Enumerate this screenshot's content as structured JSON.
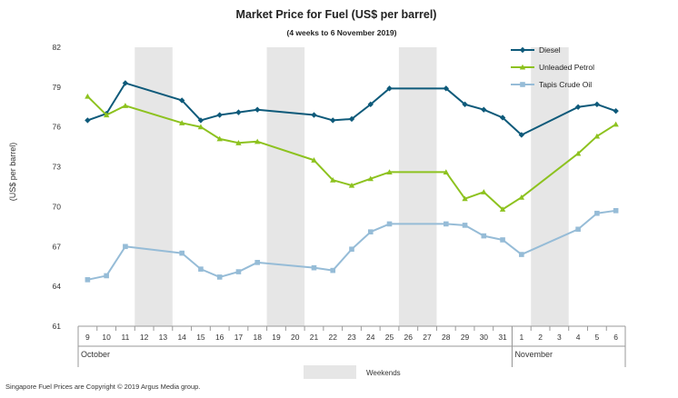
{
  "chart_data": {
    "type": "line",
    "title": "Market Price for Fuel (US$ per barrel)",
    "subtitle": "(4 weeks to 6 November 2019)",
    "ylabel": "(US$ per barrel)",
    "xlabel": "",
    "ylim": [
      61,
      82
    ],
    "yticks": [
      61,
      64,
      67,
      70,
      73,
      76,
      79,
      82
    ],
    "x": [
      "9",
      "10",
      "11",
      "12",
      "13",
      "14",
      "15",
      "16",
      "17",
      "18",
      "19",
      "20",
      "21",
      "22",
      "23",
      "24",
      "25",
      "26",
      "27",
      "28",
      "29",
      "30",
      "31",
      "1",
      "2",
      "3",
      "4",
      "5",
      "6"
    ],
    "months": [
      {
        "label": "October",
        "start": 0,
        "end": 22
      },
      {
        "label": "November",
        "start": 23,
        "end": 28
      }
    ],
    "weekends": [
      [
        3,
        4
      ],
      [
        10,
        11
      ],
      [
        17,
        18
      ],
      [
        24,
        25
      ]
    ],
    "series": [
      {
        "name": "Diesel",
        "color": "#0e5a7a",
        "marker": "diamond",
        "values": [
          76.5,
          77.0,
          79.3,
          null,
          null,
          78.0,
          76.5,
          76.9,
          77.1,
          77.3,
          null,
          null,
          76.9,
          76.5,
          76.6,
          77.7,
          78.9,
          null,
          null,
          78.9,
          77.7,
          77.3,
          76.7,
          75.4,
          null,
          null,
          77.5,
          77.7,
          77.2
        ]
      },
      {
        "name": "Unleaded Petrol",
        "color": "#8dc21f",
        "marker": "triangle",
        "values": [
          78.3,
          76.9,
          77.6,
          null,
          null,
          76.3,
          76.0,
          75.1,
          74.8,
          74.9,
          null,
          null,
          73.5,
          72.0,
          71.6,
          72.1,
          72.6,
          null,
          null,
          72.6,
          70.6,
          71.1,
          69.8,
          70.7,
          null,
          null,
          74.0,
          75.3,
          76.2
        ]
      },
      {
        "name": "Tapis Crude Oil",
        "color": "#96bcd7",
        "marker": "square",
        "values": [
          64.5,
          64.8,
          67.0,
          null,
          null,
          66.5,
          65.3,
          64.7,
          65.1,
          65.8,
          null,
          null,
          65.4,
          65.2,
          66.8,
          68.1,
          68.7,
          null,
          null,
          68.7,
          68.6,
          67.8,
          67.5,
          66.4,
          null,
          null,
          68.3,
          69.5,
          69.7
        ]
      }
    ],
    "legend_position": "top-right",
    "weekend_legend_label": "Weekends",
    "grid": false
  },
  "footer": {
    "copyright": "Singapore  Fuel Prices  are Copyright  © 2019  Argus  Media group."
  },
  "colors": {
    "weekend_fill": "#e6e6e6",
    "axis": "#9a9a9a"
  }
}
